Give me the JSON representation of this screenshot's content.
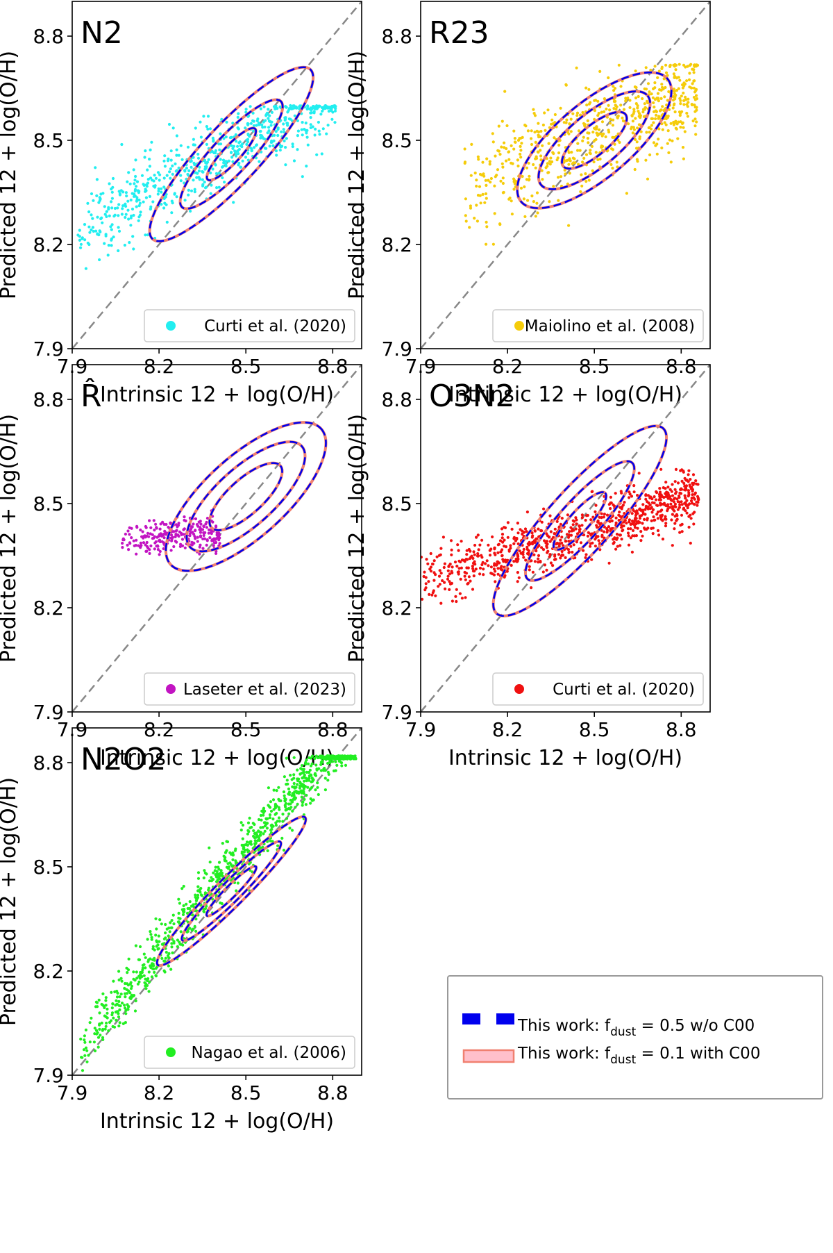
{
  "colors": {
    "contour_dashed": "#0000ee",
    "contour_solid": "#f08070",
    "diagonal": "#888888",
    "axes": "#000000"
  },
  "chart_data": [
    {
      "type": "scatter",
      "title": "N2",
      "xlabel": "Intrinsic 12 + log(O/H)",
      "ylabel": "Predicted 12 + log(O/H)",
      "xlim": [
        7.9,
        8.9
      ],
      "ylim": [
        7.9,
        8.9
      ],
      "xticks": [
        "7.9",
        "8.2",
        "8.5",
        "8.8"
      ],
      "yticks": [
        "7.9",
        "8.2",
        "8.5",
        "8.8"
      ],
      "marker_color": "#22eef0",
      "legend": "Curti et al. (2020)",
      "scatter_trend": {
        "x_range": [
          7.92,
          8.81
        ],
        "slope": 0.45,
        "intercept_at_8_5": 8.5,
        "spread": 0.055,
        "count": 700,
        "cap": 8.6
      },
      "contours": {
        "center": [
          8.45,
          8.46
        ],
        "angle_deg": 47,
        "levels": [
          [
            0.12,
            0.03
          ],
          [
            0.25,
            0.065
          ],
          [
            0.4,
            0.1
          ]
        ]
      }
    },
    {
      "type": "scatter",
      "title": "R23",
      "xlabel": "Intrinsic 12 + log(O/H)",
      "ylabel": "Predicted 12 + log(O/H)",
      "xlim": [
        7.9,
        8.9
      ],
      "ylim": [
        7.9,
        8.9
      ],
      "xticks": [
        "7.9",
        "8.2",
        "8.5",
        "8.8"
      ],
      "yticks": [
        "7.9",
        "8.2",
        "8.5",
        "8.8"
      ],
      "marker_color": "#f5cc0a",
      "legend": "Maiolino et al. (2008)",
      "scatter_trend": {
        "x_range": [
          8.05,
          8.86
        ],
        "slope": 0.35,
        "intercept_at_8_5": 8.52,
        "spread": 0.07,
        "count": 700,
        "cap": 8.72
      },
      "contours": {
        "center": [
          8.5,
          8.5
        ],
        "angle_deg": 40,
        "levels": [
          [
            0.14,
            0.05
          ],
          [
            0.24,
            0.09
          ],
          [
            0.33,
            0.13
          ]
        ]
      }
    },
    {
      "type": "scatter",
      "title": "R̂",
      "xlabel": "Intrinsic 12 + log(O/H)",
      "ylabel": "Predicted 12 + log(O/H)",
      "xlim": [
        7.9,
        8.9
      ],
      "ylim": [
        7.9,
        8.9
      ],
      "xticks": [
        "7.9",
        "8.2",
        "8.5",
        "8.8"
      ],
      "yticks": [
        "7.9",
        "8.2",
        "8.5",
        "8.8"
      ],
      "marker_color": "#c214c2",
      "legend": "Laseter et al. (2023)",
      "scatter_trend": {
        "x_range": [
          8.07,
          8.41
        ],
        "slope": 0.05,
        "intercept_at_8_5": 8.42,
        "spread": 0.025,
        "count": 260,
        "cap": 8.5
      },
      "contours": {
        "center": [
          8.5,
          8.52
        ],
        "angle_deg": 42,
        "levels": [
          [
            0.16,
            0.06
          ],
          [
            0.26,
            0.1
          ],
          [
            0.35,
            0.14
          ]
        ]
      }
    },
    {
      "type": "scatter",
      "title": "O3N2",
      "xlabel": "Intrinsic 12 + log(O/H)",
      "ylabel": "Predicted 12 + log(O/H)",
      "xlim": [
        7.9,
        8.9
      ],
      "ylim": [
        7.9,
        8.9
      ],
      "xticks": [
        "7.9",
        "8.2",
        "8.5",
        "8.8"
      ],
      "yticks": [
        "7.9",
        "8.2",
        "8.5",
        "8.8"
      ],
      "marker_color": "#f01010",
      "legend": "Curti et al. (2020)",
      "scatter_trend": {
        "x_range": [
          7.9,
          8.86
        ],
        "slope": 0.25,
        "intercept_at_8_5": 8.43,
        "spread": 0.04,
        "count": 900,
        "cap": 8.6
      },
      "contours": {
        "center": [
          8.45,
          8.45
        ],
        "angle_deg": 48,
        "levels": [
          [
            0.13,
            0.035
          ],
          [
            0.27,
            0.07
          ],
          [
            0.43,
            0.11
          ]
        ]
      }
    },
    {
      "type": "scatter",
      "title": "N2O2",
      "xlabel": "Intrinsic 12 + log(O/H)",
      "ylabel": "Predicted 12 + log(O/H)",
      "xlim": [
        7.9,
        8.9
      ],
      "ylim": [
        7.9,
        8.9
      ],
      "xticks": [
        "7.9",
        "8.2",
        "8.5",
        "8.8"
      ],
      "yticks": [
        "7.9",
        "8.2",
        "8.5",
        "8.8"
      ],
      "marker_color": "#22ee22",
      "legend": "Nagao et al. (2006)",
      "scatter_trend": {
        "x_range": [
          7.92,
          8.88
        ],
        "slope": 1.0,
        "intercept_at_8_5": 8.55,
        "spread": 0.04,
        "count": 1000,
        "cap": 8.82
      },
      "contours": {
        "center": [
          8.45,
          8.43
        ],
        "angle_deg": 45,
        "levels": [
          [
            0.12,
            0.02
          ],
          [
            0.24,
            0.035
          ],
          [
            0.36,
            0.05
          ]
        ]
      }
    }
  ],
  "shared_legend": {
    "entries": [
      {
        "style": "dashed",
        "label_prefix": "This work: f",
        "label_sub": "dust",
        "label_suffix": " = 0.5 w/o C00"
      },
      {
        "style": "solid",
        "label_prefix": "This work: f",
        "label_sub": "dust",
        "label_suffix": " = 0.1 with C00"
      }
    ]
  }
}
